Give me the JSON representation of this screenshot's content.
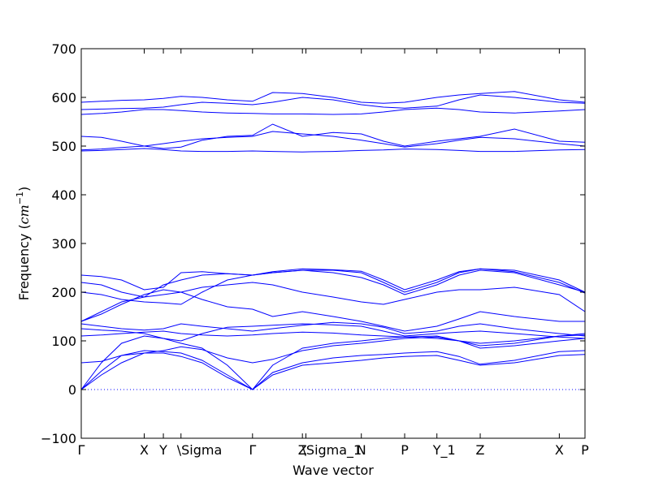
{
  "chart_data": {
    "type": "line",
    "title": "",
    "xlabel": "Wave vector",
    "ylabel_prefix": "Frequency (",
    "ylabel_unit": "cm",
    "ylabel_exp": "−1",
    "ylabel_suffix": ")",
    "ylim": [
      -100,
      700
    ],
    "yticks": [
      -100,
      0,
      100,
      200,
      300,
      400,
      500,
      600,
      700
    ],
    "xlim": [
      0,
      1
    ],
    "grid": false,
    "line_color": "#0000ff",
    "zero_line_color": "#0000ff",
    "special_points": [
      {
        "label": "Γ",
        "x": 0.0
      },
      {
        "label": "X",
        "x": 0.125
      },
      {
        "label": "Y",
        "x": 0.163
      },
      {
        "label": "\\Sigma",
        "x": 0.198
      },
      {
        "label": "Γ",
        "x": 0.34
      },
      {
        "label": "Z",
        "x": 0.439
      },
      {
        "label": "\\Sigma_1",
        "x": 0.446
      },
      {
        "label": "N",
        "x": 0.556
      },
      {
        "label": "P",
        "x": 0.642
      },
      {
        "label": "Y_1",
        "x": 0.706
      },
      {
        "label": "Z",
        "x": 0.792
      },
      {
        "label": "X",
        "x": 0.949
      },
      {
        "label": "P",
        "x": 1.0
      }
    ],
    "bands": [
      {
        "name": "",
        "x": [
          0.0,
          0.04,
          0.08,
          0.125,
          0.163,
          0.198,
          0.24,
          0.29,
          0.34,
          0.38,
          0.439,
          0.5,
          0.556,
          0.6,
          0.642,
          0.706,
          0.75,
          0.792,
          0.86,
          0.949,
          1.0
        ],
        "y": [
          0,
          30,
          55,
          75,
          75,
          68,
          55,
          25,
          0,
          30,
          50,
          55,
          60,
          65,
          68,
          70,
          60,
          50,
          55,
          70,
          72
        ]
      },
      {
        "name": "",
        "x": [
          0.0,
          0.04,
          0.08,
          0.125,
          0.163,
          0.198,
          0.24,
          0.29,
          0.34,
          0.38,
          0.439,
          0.5,
          0.556,
          0.6,
          0.642,
          0.706,
          0.75,
          0.792,
          0.86,
          0.949,
          1.0
        ],
        "y": [
          0,
          38,
          70,
          80,
          78,
          75,
          60,
          30,
          0,
          35,
          55,
          65,
          70,
          72,
          75,
          78,
          68,
          52,
          60,
          78,
          80
        ]
      },
      {
        "name": "",
        "x": [
          0.0,
          0.04,
          0.08,
          0.125,
          0.163,
          0.198,
          0.24,
          0.29,
          0.34,
          0.38,
          0.439,
          0.5,
          0.556,
          0.6,
          0.642,
          0.706,
          0.75,
          0.792,
          0.86,
          0.949,
          1.0
        ],
        "y": [
          0,
          55,
          95,
          110,
          105,
          95,
          85,
          50,
          0,
          50,
          85,
          95,
          100,
          105,
          108,
          110,
          100,
          85,
          90,
          100,
          105
        ]
      },
      {
        "name": "",
        "x": [
          0.0,
          0.04,
          0.08,
          0.125,
          0.163,
          0.198,
          0.24,
          0.29,
          0.34,
          0.38,
          0.439,
          0.5,
          0.556,
          0.6,
          0.642,
          0.706,
          0.75,
          0.792,
          0.86,
          0.949,
          1.0
        ],
        "y": [
          55,
          58,
          70,
          75,
          80,
          88,
          82,
          65,
          55,
          62,
          80,
          90,
          95,
          100,
          105,
          108,
          100,
          90,
          95,
          110,
          115
        ]
      },
      {
        "name": "",
        "x": [
          0.0,
          0.04,
          0.08,
          0.125,
          0.163,
          0.198,
          0.24,
          0.29,
          0.34,
          0.38,
          0.439,
          0.5,
          0.556,
          0.6,
          0.642,
          0.706,
          0.75,
          0.792,
          0.86,
          0.949,
          1.0
        ],
        "y": [
          110,
          112,
          115,
          118,
          120,
          115,
          112,
          110,
          112,
          115,
          118,
          116,
          112,
          110,
          108,
          105,
          100,
          95,
          100,
          110,
          112
        ]
      },
      {
        "name": "",
        "x": [
          0.0,
          0.04,
          0.08,
          0.125,
          0.163,
          0.198,
          0.24,
          0.29,
          0.34,
          0.38,
          0.439,
          0.5,
          0.556,
          0.6,
          0.642,
          0.706,
          0.75,
          0.792,
          0.86,
          0.949,
          1.0
        ],
        "y": [
          125,
          122,
          120,
          115,
          105,
          100,
          115,
          128,
          130,
          132,
          135,
          133,
          130,
          120,
          110,
          115,
          118,
          120,
          115,
          108,
          105
        ]
      },
      {
        "name": "",
        "x": [
          0.0,
          0.04,
          0.08,
          0.125,
          0.163,
          0.198,
          0.24,
          0.29,
          0.34,
          0.38,
          0.439,
          0.5,
          0.556,
          0.6,
          0.642,
          0.706,
          0.75,
          0.792,
          0.86,
          0.949,
          1.0
        ],
        "y": [
          135,
          130,
          125,
          122,
          125,
          135,
          130,
          125,
          120,
          125,
          132,
          138,
          135,
          128,
          115,
          120,
          130,
          135,
          125,
          115,
          110
        ]
      },
      {
        "name": "",
        "x": [
          0.0,
          0.04,
          0.08,
          0.125,
          0.163,
          0.198,
          0.24,
          0.29,
          0.34,
          0.38,
          0.439,
          0.5,
          0.556,
          0.6,
          0.642,
          0.706,
          0.75,
          0.792,
          0.86,
          0.949,
          1.0
        ],
        "y": [
          140,
          155,
          175,
          195,
          205,
          200,
          185,
          170,
          165,
          150,
          160,
          150,
          140,
          130,
          120,
          130,
          145,
          160,
          150,
          140,
          140
        ]
      },
      {
        "name": "",
        "x": [
          0.0,
          0.04,
          0.08,
          0.125,
          0.163,
          0.198,
          0.24,
          0.29,
          0.34,
          0.38,
          0.439,
          0.5,
          0.556,
          0.6,
          0.642,
          0.706,
          0.75,
          0.792,
          0.86,
          0.949,
          1.0
        ],
        "y": [
          140,
          160,
          180,
          190,
          195,
          200,
          210,
          215,
          220,
          215,
          200,
          190,
          180,
          175,
          185,
          200,
          205,
          205,
          210,
          195,
          160
        ]
      },
      {
        "name": "",
        "x": [
          0.0,
          0.04,
          0.08,
          0.125,
          0.163,
          0.198,
          0.24,
          0.29,
          0.34,
          0.38,
          0.439,
          0.5,
          0.556,
          0.6,
          0.642,
          0.706,
          0.75,
          0.792,
          0.86,
          0.949,
          1.0
        ],
        "y": [
          200,
          195,
          185,
          180,
          178,
          175,
          200,
          225,
          235,
          240,
          245,
          240,
          230,
          215,
          195,
          215,
          235,
          245,
          240,
          215,
          200
        ]
      },
      {
        "name": "",
        "x": [
          0.0,
          0.04,
          0.08,
          0.125,
          0.163,
          0.198,
          0.24,
          0.29,
          0.34,
          0.38,
          0.439,
          0.5,
          0.556,
          0.6,
          0.642,
          0.706,
          0.75,
          0.792,
          0.86,
          0.949,
          1.0
        ],
        "y": [
          220,
          215,
          200,
          190,
          215,
          225,
          235,
          238,
          235,
          240,
          245,
          245,
          240,
          220,
          200,
          220,
          240,
          248,
          242,
          220,
          198
        ]
      },
      {
        "name": "",
        "x": [
          0.0,
          0.04,
          0.08,
          0.125,
          0.163,
          0.198,
          0.24,
          0.29,
          0.34,
          0.38,
          0.439,
          0.5,
          0.556,
          0.6,
          0.642,
          0.706,
          0.75,
          0.792,
          0.86,
          0.949,
          1.0
        ],
        "y": [
          235,
          232,
          225,
          205,
          210,
          240,
          242,
          238,
          235,
          242,
          248,
          246,
          243,
          225,
          205,
          225,
          242,
          248,
          245,
          225,
          200
        ]
      },
      {
        "name": "",
        "x": [
          0.0,
          0.04,
          0.08,
          0.125,
          0.163,
          0.198,
          0.24,
          0.29,
          0.34,
          0.38,
          0.439,
          0.5,
          0.556,
          0.6,
          0.642,
          0.706,
          0.75,
          0.792,
          0.86,
          0.949,
          1.0
        ],
        "y": [
          490,
          491,
          493,
          495,
          493,
          490,
          489,
          489,
          490,
          489,
          488,
          489,
          491,
          492,
          494,
          493,
          491,
          489,
          489,
          492,
          493
        ]
      },
      {
        "name": "",
        "x": [
          0.0,
          0.04,
          0.08,
          0.125,
          0.163,
          0.198,
          0.24,
          0.29,
          0.34,
          0.38,
          0.439,
          0.5,
          0.556,
          0.6,
          0.642,
          0.706,
          0.75,
          0.792,
          0.86,
          0.949,
          1.0
        ],
        "y": [
          492,
          494,
          497,
          500,
          505,
          510,
          515,
          518,
          520,
          530,
          525,
          520,
          512,
          505,
          498,
          505,
          512,
          518,
          515,
          505,
          500
        ]
      },
      {
        "name": "",
        "x": [
          0.0,
          0.04,
          0.08,
          0.125,
          0.163,
          0.198,
          0.24,
          0.29,
          0.34,
          0.38,
          0.439,
          0.5,
          0.556,
          0.6,
          0.642,
          0.706,
          0.75,
          0.792,
          0.86,
          0.949,
          1.0
        ],
        "y": [
          520,
          518,
          510,
          500,
          495,
          498,
          512,
          520,
          522,
          545,
          520,
          528,
          525,
          510,
          500,
          510,
          515,
          520,
          535,
          510,
          508
        ]
      },
      {
        "name": "",
        "x": [
          0.0,
          0.04,
          0.08,
          0.125,
          0.163,
          0.198,
          0.24,
          0.29,
          0.34,
          0.38,
          0.439,
          0.5,
          0.556,
          0.6,
          0.642,
          0.706,
          0.75,
          0.792,
          0.86,
          0.949,
          1.0
        ],
        "y": [
          565,
          567,
          570,
          575,
          575,
          573,
          570,
          568,
          567,
          566,
          566,
          565,
          566,
          570,
          575,
          578,
          575,
          570,
          568,
          572,
          575
        ]
      },
      {
        "name": "",
        "x": [
          0.0,
          0.04,
          0.08,
          0.125,
          0.163,
          0.198,
          0.24,
          0.29,
          0.34,
          0.38,
          0.439,
          0.5,
          0.556,
          0.6,
          0.642,
          0.706,
          0.75,
          0.792,
          0.86,
          0.949,
          1.0
        ],
        "y": [
          575,
          576,
          577,
          578,
          580,
          585,
          590,
          588,
          585,
          590,
          600,
          595,
          585,
          580,
          578,
          582,
          595,
          605,
          600,
          590,
          588
        ]
      },
      {
        "name": "",
        "x": [
          0.0,
          0.04,
          0.08,
          0.125,
          0.163,
          0.198,
          0.24,
          0.29,
          0.34,
          0.38,
          0.439,
          0.5,
          0.556,
          0.6,
          0.642,
          0.706,
          0.75,
          0.792,
          0.86,
          0.949,
          1.0
        ],
        "y": [
          590,
          592,
          594,
          595,
          598,
          602,
          600,
          595,
          592,
          610,
          608,
          600,
          590,
          588,
          590,
          600,
          605,
          608,
          612,
          595,
          590
        ]
      }
    ]
  }
}
